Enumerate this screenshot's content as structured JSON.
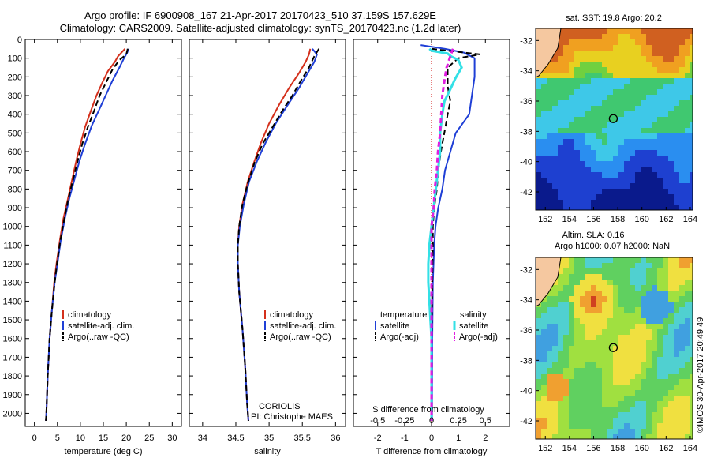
{
  "header": {
    "line1": "Argo profile: IF 6900908_167 21-Apr-2017 20170423_510 37.159S 157.629E",
    "line2": "Climatology: CARS2009. Satellite-adjusted climatology: synTS_20170423.nc (1.2d later)"
  },
  "colors": {
    "climatology": "#d4301c",
    "satellite": "#1f3fd6",
    "argo": "#000000",
    "sat_salinity": "#33e0e6",
    "argo_salinity": "#e01ee0"
  },
  "chart_data": [
    {
      "type": "line",
      "panel": "temperature",
      "xlabel": "temperature (deg C)",
      "xticks": [
        0,
        5,
        10,
        15,
        20,
        25,
        30
      ],
      "xlim": [
        -2,
        32
      ],
      "ylim": [
        2070,
        0
      ],
      "yticks": [
        0,
        100,
        200,
        300,
        400,
        500,
        600,
        700,
        800,
        900,
        1000,
        1100,
        1200,
        1300,
        1400,
        1500,
        1600,
        1700,
        1800,
        1900,
        2000
      ],
      "legend": [
        "climatology",
        "satellite-adj. clim.",
        "Argo(..raw -QC)"
      ],
      "series": [
        {
          "name": "climatology",
          "style": "solid",
          "color": "#d4301c",
          "points": [
            [
              19.7,
              50
            ],
            [
              18.2,
              90
            ],
            [
              17.5,
              120
            ],
            [
              16.0,
              170
            ],
            [
              14.8,
              230
            ],
            [
              13.5,
              300
            ],
            [
              12.3,
              380
            ],
            [
              11.0,
              470
            ],
            [
              10.0,
              560
            ],
            [
              9.2,
              640
            ],
            [
              8.2,
              750
            ],
            [
              7.3,
              850
            ],
            [
              6.3,
              960
            ],
            [
              5.5,
              1080
            ],
            [
              4.8,
              1200
            ],
            [
              4.3,
              1300
            ],
            [
              3.8,
              1450
            ],
            [
              3.3,
              1600
            ],
            [
              2.9,
              1800
            ],
            [
              2.6,
              2000
            ],
            [
              2.5,
              2040
            ]
          ]
        },
        {
          "name": "satellite-adj. clim.",
          "style": "solid",
          "color": "#1f3fd6",
          "points": [
            [
              20.5,
              50
            ],
            [
              20.2,
              70
            ],
            [
              19.5,
              100
            ],
            [
              18.5,
              150
            ],
            [
              17.0,
              220
            ],
            [
              15.5,
              300
            ],
            [
              14.0,
              380
            ],
            [
              12.5,
              460
            ],
            [
              11.0,
              560
            ],
            [
              9.8,
              650
            ],
            [
              8.7,
              750
            ],
            [
              7.6,
              850
            ],
            [
              6.6,
              960
            ],
            [
              5.7,
              1080
            ],
            [
              5.0,
              1200
            ],
            [
              4.4,
              1300
            ],
            [
              3.8,
              1450
            ],
            [
              3.3,
              1600
            ],
            [
              2.9,
              1800
            ],
            [
              2.6,
              2000
            ],
            [
              2.5,
              2040
            ]
          ]
        },
        {
          "name": "Argo(..raw -QC)",
          "style": "dashed",
          "color": "#000000",
          "points": [
            [
              20.3,
              50
            ],
            [
              20.0,
              80
            ],
            [
              18.5,
              110
            ],
            [
              17.0,
              160
            ],
            [
              15.6,
              230
            ],
            [
              14.2,
              300
            ],
            [
              13.0,
              380
            ],
            [
              11.6,
              470
            ],
            [
              10.4,
              560
            ],
            [
              9.4,
              650
            ],
            [
              8.4,
              750
            ],
            [
              7.4,
              850
            ],
            [
              6.5,
              960
            ],
            [
              5.6,
              1080
            ],
            [
              4.9,
              1200
            ],
            [
              4.4,
              1300
            ],
            [
              3.8,
              1450
            ],
            [
              3.3,
              1600
            ],
            [
              2.9,
              1800
            ],
            [
              2.6,
              2000
            ],
            [
              2.5,
              2040
            ]
          ]
        }
      ]
    },
    {
      "type": "line",
      "panel": "salinity",
      "xlabel": "salinity",
      "xticks": [
        34,
        34.5,
        35,
        35.5,
        36
      ],
      "xlim": [
        33.8,
        36.15
      ],
      "ylim": [
        2070,
        0
      ],
      "legend": [
        "climatology",
        "satellite-adj. clim.",
        "Argo(..raw -QC)"
      ],
      "annotation": [
        "CORIOLIS",
        "PI: Christophe MAES"
      ],
      "series": [
        {
          "name": "climatology",
          "style": "solid",
          "color": "#d4301c",
          "points": [
            [
              35.62,
              50
            ],
            [
              35.6,
              80
            ],
            [
              35.55,
              120
            ],
            [
              35.45,
              180
            ],
            [
              35.3,
              260
            ],
            [
              35.15,
              350
            ],
            [
              35.0,
              450
            ],
            [
              34.88,
              550
            ],
            [
              34.78,
              650
            ],
            [
              34.68,
              760
            ],
            [
              34.6,
              880
            ],
            [
              34.55,
              1000
            ],
            [
              34.53,
              1100
            ],
            [
              34.53,
              1200
            ],
            [
              34.55,
              1350
            ],
            [
              34.6,
              1550
            ],
            [
              34.64,
              1750
            ],
            [
              34.67,
              1950
            ],
            [
              34.69,
              2040
            ]
          ]
        },
        {
          "name": "satellite-adj. clim.",
          "style": "solid",
          "color": "#1f3fd6",
          "points": [
            [
              35.65,
              50
            ],
            [
              35.72,
              80
            ],
            [
              35.68,
              120
            ],
            [
              35.58,
              180
            ],
            [
              35.45,
              260
            ],
            [
              35.28,
              350
            ],
            [
              35.1,
              450
            ],
            [
              34.95,
              550
            ],
            [
              34.82,
              650
            ],
            [
              34.7,
              760
            ],
            [
              34.62,
              880
            ],
            [
              34.56,
              1000
            ],
            [
              34.53,
              1100
            ],
            [
              34.53,
              1200
            ],
            [
              34.55,
              1350
            ],
            [
              34.6,
              1550
            ],
            [
              34.64,
              1750
            ],
            [
              34.67,
              1950
            ],
            [
              34.69,
              2040
            ]
          ]
        },
        {
          "name": "Argo(..raw -QC)",
          "style": "dashed",
          "color": "#000000",
          "points": [
            [
              35.75,
              50
            ],
            [
              35.68,
              90
            ],
            [
              35.6,
              150
            ],
            [
              35.48,
              220
            ],
            [
              35.35,
              300
            ],
            [
              35.2,
              380
            ],
            [
              35.05,
              470
            ],
            [
              34.9,
              560
            ],
            [
              34.78,
              660
            ],
            [
              34.68,
              770
            ],
            [
              34.6,
              880
            ],
            [
              34.55,
              1000
            ],
            [
              34.53,
              1100
            ],
            [
              34.53,
              1200
            ],
            [
              34.55,
              1350
            ],
            [
              34.6,
              1550
            ],
            [
              34.64,
              1750
            ],
            [
              34.67,
              1950
            ],
            [
              34.69,
              2040
            ]
          ]
        }
      ]
    },
    {
      "type": "line",
      "panel": "difference",
      "xlabel": "T difference from climatology",
      "xticks": [
        -2,
        -1,
        0,
        1,
        2
      ],
      "xlabel_top": "S difference from climatology",
      "xticks_top": [
        "-0.5",
        "-0.25",
        "0",
        "0.25",
        "0.5"
      ],
      "xlim": [
        -2.9,
        2.9
      ],
      "ylim": [
        2070,
        0
      ],
      "legend_left_title": "temperature",
      "legend_right_title": "salinity",
      "legend": [
        "satellite",
        "Argo(-adj)",
        "satellite",
        "Argo(-adj)"
      ],
      "series": [
        {
          "name": "satellite",
          "quantity": "T",
          "style": "solid",
          "color": "#1f3fd6",
          "points": [
            [
              -0.4,
              30
            ],
            [
              0.5,
              50
            ],
            [
              1.2,
              70
            ],
            [
              1.6,
              100
            ],
            [
              1.6,
              200
            ],
            [
              1.5,
              300
            ],
            [
              1.4,
              400
            ],
            [
              0.9,
              500
            ],
            [
              0.7,
              600
            ],
            [
              0.5,
              700
            ],
            [
              0.4,
              800
            ],
            [
              0.25,
              900
            ],
            [
              0.15,
              1000
            ],
            [
              0.1,
              1100
            ],
            [
              0.05,
              1300
            ],
            [
              0.03,
              1600
            ],
            [
              0.02,
              2040
            ]
          ]
        },
        {
          "name": "Argo(-adj)",
          "quantity": "T",
          "style": "dashed",
          "color": "#000000",
          "points": [
            [
              0,
              50
            ],
            [
              1.8,
              80
            ],
            [
              1.0,
              100
            ],
            [
              0.6,
              150
            ],
            [
              0.6,
              250
            ],
            [
              0.7,
              330
            ],
            [
              0.6,
              400
            ],
            [
              0.5,
              480
            ],
            [
              0.35,
              600
            ],
            [
              0.25,
              700
            ],
            [
              0.2,
              800
            ],
            [
              0.1,
              900
            ],
            [
              0.05,
              1000
            ],
            [
              0.05,
              1100
            ],
            [
              0.03,
              1300
            ],
            [
              0.0,
              1600
            ],
            [
              0.0,
              2040
            ]
          ]
        },
        {
          "name": "satellite",
          "quantity": "S",
          "style": "solid",
          "color": "#33e0e6",
          "points": [
            [
              -0.02,
              50
            ],
            [
              0.0,
              60
            ],
            [
              0.15,
              75
            ],
            [
              0.18,
              90
            ],
            [
              0.25,
              110
            ],
            [
              0.28,
              150
            ],
            [
              0.22,
              210
            ],
            [
              0.18,
              260
            ],
            [
              0.12,
              330
            ],
            [
              0.1,
              400
            ],
            [
              0.08,
              500
            ],
            [
              0.08,
              600
            ],
            [
              0.06,
              700
            ],
            [
              0.04,
              800
            ],
            [
              0.02,
              900
            ],
            [
              0.0,
              1000
            ],
            [
              -0.02,
              1100
            ],
            [
              -0.03,
              1200
            ],
            [
              -0.03,
              1300
            ],
            [
              -0.02,
              1400
            ],
            [
              -0.01,
              1500
            ],
            [
              0.0,
              1600
            ],
            [
              0.0,
              1800
            ],
            [
              0.0,
              2040
            ]
          ]
        },
        {
          "name": "Argo(-adj)",
          "quantity": "S",
          "style": "dashed",
          "color": "#e01ee0",
          "points": [
            [
              0.2,
              50
            ],
            [
              0.18,
              80
            ],
            [
              0.14,
              150
            ],
            [
              0.12,
              220
            ],
            [
              0.1,
              300
            ],
            [
              0.09,
              400
            ],
            [
              0.08,
              500
            ],
            [
              0.06,
              600
            ],
            [
              0.05,
              700
            ],
            [
              0.03,
              800
            ],
            [
              0.02,
              900
            ],
            [
              0.0,
              1000
            ],
            [
              0.0,
              1200
            ],
            [
              0.0,
              1500
            ],
            [
              0.0,
              2040
            ]
          ]
        }
      ]
    },
    {
      "type": "heatmap",
      "panel": "sst_map",
      "title": "sat. SST: 19.8 Argo: 20.2",
      "xticks": [
        152,
        154,
        156,
        158,
        160,
        162,
        164
      ],
      "yticks": [
        -32,
        -34,
        -36,
        -38,
        -40,
        -42
      ],
      "xlim": [
        151.2,
        164.2
      ],
      "ylim": [
        -43.2,
        -31.2
      ],
      "float_position": {
        "lon": 157.629,
        "lat": -37.159
      }
    },
    {
      "type": "heatmap",
      "panel": "sla_map",
      "title_line1": "Altim. SLA: 0.16",
      "title_line2": "Argo h1000: 0.07 h2000: NaN",
      "xticks": [
        152,
        154,
        156,
        158,
        160,
        162,
        164
      ],
      "yticks": [
        -32,
        -34,
        -36,
        -38,
        -40,
        -42
      ],
      "xlim": [
        151.2,
        164.2
      ],
      "ylim": [
        -43.2,
        -31.2
      ],
      "float_position": {
        "lon": 157.629,
        "lat": -37.159
      }
    }
  ],
  "credit": "©IMOS 30-Apr-2017 20:49:49"
}
